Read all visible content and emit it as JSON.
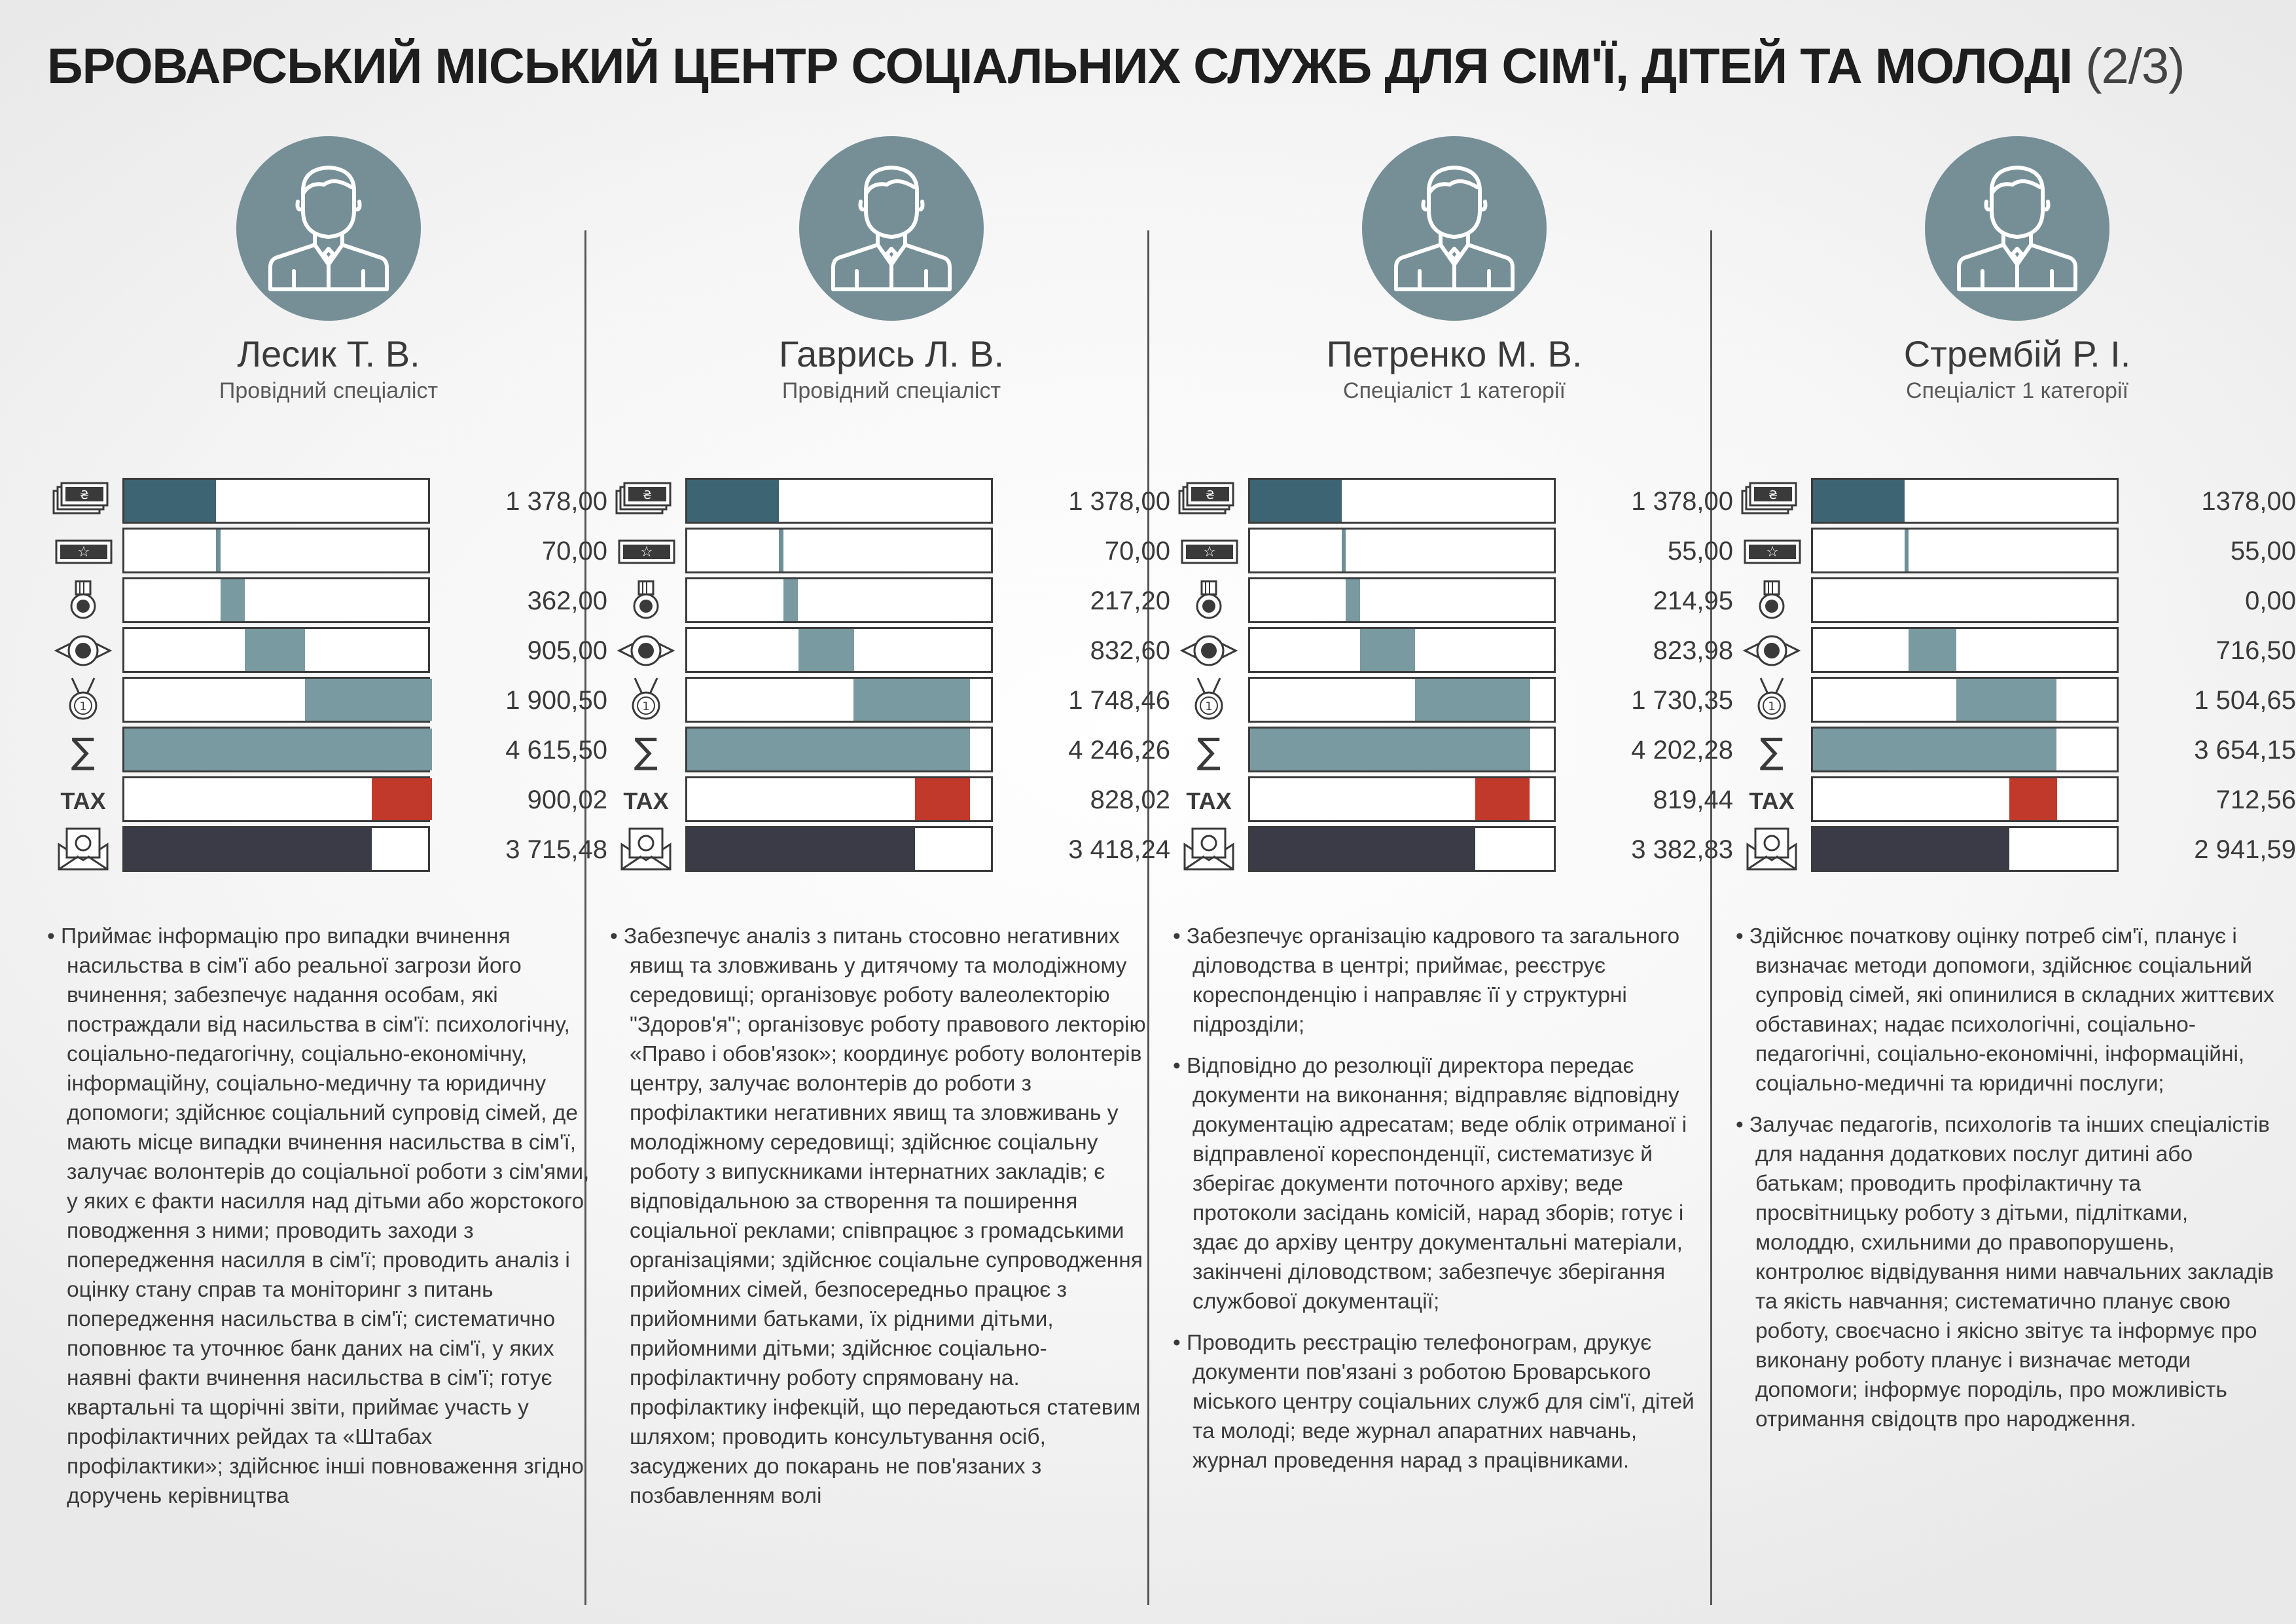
{
  "title": {
    "main": "БРОВАРСЬКИЙ МІСЬКИЙ ЦЕНТР СОЦІАЛЬНИХ СЛУЖБ ДЛЯ СІМ'Ї, ДІТЕЙ ТА МОЛОДІ",
    "suffix": "(2/3)"
  },
  "colors": {
    "avatar": "#768f96",
    "salary": "#3d6473",
    "bonus": "#6e8f97",
    "allowance": "#7a9aa1",
    "total": "#7a9aa1",
    "tax": "#c0392b",
    "net": "#3a3b47"
  },
  "rows": [
    {
      "key": "salary",
      "icon": "money-stack-icon"
    },
    {
      "key": "bonus",
      "icon": "ticket-star-icon"
    },
    {
      "key": "seniority",
      "icon": "medal-icon"
    },
    {
      "key": "award",
      "icon": "rosette-icon"
    },
    {
      "key": "premium",
      "icon": "first-place-medal-icon"
    },
    {
      "key": "total",
      "icon": "sigma-icon"
    },
    {
      "key": "tax",
      "icon": "tax-label",
      "label": "TAX"
    },
    {
      "key": "net",
      "icon": "envelope-money-icon"
    }
  ],
  "people": [
    {
      "name": "Лесик Т. В.",
      "role": "Провідний спеціаліст",
      "values": [
        "1 378,00",
        "70,00",
        "362,00",
        "905,00",
        "1 900,50",
        "4 615,50",
        "900,02",
        "3 715,48"
      ],
      "amounts": [
        1378.0,
        70.0,
        362.0,
        905.0,
        1900.5,
        4615.5,
        900.02,
        3715.48
      ],
      "description": [
        "Приймає інформацію про випадки вчинення насильства в сім'ї або реальної загрози його вчинення; забезпечує надання особам, які постраждали від насильства в сім'ї: психологічну, соціально-педагогічну, соціально-економічну, інформаційну, соціально-медичну та юридичну допомоги; здійснює соціальний супровід сімей, де мають місце випадки вчинення насильства в сім'ї, залучає волонтерів до соціальної роботи з сім'ями, у яких є факти насилля над дітьми або жорстокого поводження з ними; проводить заходи з попередження насилля в сім'ї; проводить аналіз і оцінку стану справ та моніторинг з питань попередження насильства в сім'ї; систематично поповнює та уточнює банк даних на сім'ї, у яких наявні факти вчинення насильства в сім'ї; готує квартальні та щорічні звіти, приймає участь у профілактичних рейдах та «Штабах профілактики»; здійснює інші повноваження згідно доручень керівництва"
      ]
    },
    {
      "name": "Гаврись Л. В.",
      "role": "Провідний спеціаліст",
      "values": [
        "1 378,00",
        "70,00",
        "217,20",
        "832,60",
        "1 748,46",
        "4 246,26",
        "828,02",
        "3 418,24"
      ],
      "amounts": [
        1378.0,
        70.0,
        217.2,
        832.6,
        1748.46,
        4246.26,
        828.02,
        3418.24
      ],
      "description": [
        "Забезпечує аналіз з питань стосовно негативних явищ та зловживань у дитячому та молодіжному середовищі; організовує роботу валеолекторію \"Здоров'я\"; організовує роботу правового лекторію «Право і обов'язок»; координує роботу волонтерів центру, залучає волонтерів до роботи з профілактики негативних явищ та зловживань у молодіжному середовищі; здійснює соціальну роботу з випускниками інтернатних закладів; є відповідальною за створення та поширення соціальної реклами; співпрацює з громадськими організаціями; здійснює соціальне супроводження прийомних сімей, безпосередньо працює з прийомними батьками, їх рідними дітьми, прийомними дітьми; здійснює соціально-профілактичну роботу спрямовану на. профілактику інфекцій, що передаються статевим шляхом; проводить консультування осіб, засуджених до покарань не пов'язаних з позбавленням волі"
      ]
    },
    {
      "name": "Петренко М. В.",
      "role": "Спеціаліст 1 категорії",
      "values": [
        "1 378,00",
        "55,00",
        "214,95",
        "823,98",
        "1 730,35",
        "4 202,28",
        "819,44",
        "3 382,83"
      ],
      "amounts": [
        1378.0,
        55.0,
        214.95,
        823.98,
        1730.35,
        4202.28,
        819.44,
        3382.83
      ],
      "description": [
        "Забезпечує організацію кадрового та загального діловодства в центрі; приймає, реєструє кореспонденцію і направляє її у структурні підрозділи;",
        "Відповідно до резолюції директора передає документи на виконання; відправляє відповідну документацію адресатам; веде облік отриманої і відправленої кореспонденції, систематизує й зберігає документи поточного архіву; веде протоколи засідань комісій, нарад зборів; готує і здає до архіву центру документальні матеріали, закінчені діловодством; забезпечує зберігання службової документації;",
        "Проводить реєстрацію телефонограм, друкує документи пов'язані з роботою Броварського міського центру соціальних служб для сім'ї, дітей та молоді; веде журнал апаратних навчань, журнал проведення нарад з працівниками."
      ]
    },
    {
      "name": "Стрембій Р. І.",
      "role": "Спеціаліст 1 категорії",
      "values": [
        "1378,00",
        "55,00",
        "0,00",
        "716,50",
        "1 504,65",
        "3 654,15",
        "712,56",
        "2 941,59"
      ],
      "amounts": [
        1378.0,
        55.0,
        0.0,
        716.5,
        1504.65,
        3654.15,
        712.56,
        2941.59
      ],
      "description": [
        "Здійснює початкову оцінку потреб сім'ї, планує і визначає методи допомоги, здійснює соціальний супровід сімей, які опинилися в складних життєвих обставинах; надає психологічні, соціально-педагогічні, соціально-економічні, інформаційні, соціально-медичні та юридичні послуги;",
        "Залучає педагогів, психологів та інших спеціалістів для надання додаткових послуг дитині або батькам; проводить профілактичну та просвітницьку роботу з дітьми, підлітками, молоддю, схильними до правопорушень, контролює відвідування ними навчальних закладів та якість навчання; систематично планує свою роботу, своєчасно і якісно звітує та інформує про виконану роботу планує і визначає методи допомоги; інформує породіль, про можливість отримання свідоцтв про народження."
      ]
    }
  ]
}
